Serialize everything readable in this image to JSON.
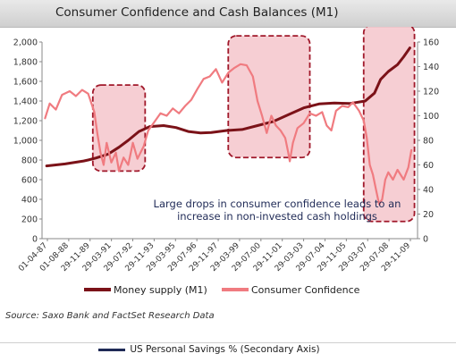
{
  "title": "Consumer Confidence and Cash Balances (M1)",
  "source": "Source: Saxo Bank and FactSet Research Data",
  "bottom_legend": "US Personal Savings % (Secondary Axis)",
  "annotation": {
    "line1": "Large drops in consumer confidence leads to an",
    "line2": "increase in non-invested cash holdings"
  },
  "colors": {
    "money_supply": "#7b1218",
    "consumer_confidence": "#f07b80",
    "highlight_fill": "#f4c5cb",
    "highlight_border": "#a0182a",
    "annotation_text": "#1f2a56",
    "savings_line": "#1f2a56"
  },
  "chart_data": {
    "type": "line",
    "title": "Consumer Confidence and Cash Balances (M1)",
    "x_tick_labels": [
      "01-04-87",
      "01-08-88",
      "29-11-89",
      "29-03-91",
      "29-07-92",
      "29-11-93",
      "29-03-95",
      "29-07-96",
      "29-11-97",
      "29-03-99",
      "29-07-00",
      "29-11-01",
      "29-03-03",
      "29-07-04",
      "29-11-05",
      "29-03-07",
      "29-07-08",
      "29-11-09"
    ],
    "y_left": {
      "range": [
        0,
        2000
      ],
      "ticks": [
        "0",
        "200",
        "400",
        "600",
        "800",
        "1,000",
        "1,200",
        "1,400",
        "1,600",
        "1,800",
        "2,000"
      ]
    },
    "y_right": {
      "range": [
        0,
        160
      ],
      "ticks": [
        "0",
        "20",
        "40",
        "60",
        "80",
        "100",
        "120",
        "140",
        "160"
      ]
    },
    "series": [
      {
        "name": "Money supply (M1)",
        "axis": "left",
        "points": [
          [
            1987.3,
            740
          ],
          [
            1988.5,
            760
          ],
          [
            1989.7,
            790
          ],
          [
            1990.0,
            800
          ],
          [
            1990.5,
            820
          ],
          [
            1991.3,
            860
          ],
          [
            1992.0,
            930
          ],
          [
            1992.6,
            1000
          ],
          [
            1993.3,
            1090
          ],
          [
            1994.0,
            1140
          ],
          [
            1994.9,
            1150
          ],
          [
            1995.7,
            1130
          ],
          [
            1996.5,
            1090
          ],
          [
            1997.3,
            1075
          ],
          [
            1998.0,
            1080
          ],
          [
            1999.0,
            1100
          ],
          [
            2000.0,
            1110
          ],
          [
            2001.0,
            1150
          ],
          [
            2002.0,
            1190
          ],
          [
            2003.0,
            1260
          ],
          [
            2004.0,
            1330
          ],
          [
            2005.0,
            1370
          ],
          [
            2006.0,
            1380
          ],
          [
            2007.0,
            1375
          ],
          [
            2008.0,
            1400
          ],
          [
            2008.6,
            1480
          ],
          [
            2009.0,
            1620
          ],
          [
            2009.5,
            1700
          ],
          [
            2010.1,
            1770
          ],
          [
            2010.5,
            1850
          ],
          [
            2010.9,
            1940
          ]
        ]
      },
      {
        "name": "Consumer Confidence",
        "axis": "right",
        "points": [
          [
            1987.2,
            98
          ],
          [
            1987.5,
            110
          ],
          [
            1987.9,
            105
          ],
          [
            1988.3,
            117
          ],
          [
            1988.8,
            120
          ],
          [
            1989.2,
            116
          ],
          [
            1989.6,
            121
          ],
          [
            1990.0,
            118
          ],
          [
            1990.4,
            103
          ],
          [
            1990.6,
            85
          ],
          [
            1990.8,
            70
          ],
          [
            1991.0,
            60
          ],
          [
            1991.2,
            78
          ],
          [
            1991.5,
            62
          ],
          [
            1991.8,
            70
          ],
          [
            1992.0,
            55
          ],
          [
            1992.3,
            66
          ],
          [
            1992.6,
            60
          ],
          [
            1992.9,
            78
          ],
          [
            1993.2,
            65
          ],
          [
            1993.6,
            75
          ],
          [
            1993.9,
            88
          ],
          [
            1994.3,
            95
          ],
          [
            1994.7,
            102
          ],
          [
            1995.1,
            100
          ],
          [
            1995.5,
            106
          ],
          [
            1995.9,
            102
          ],
          [
            1996.3,
            108
          ],
          [
            1996.7,
            113
          ],
          [
            1997.1,
            122
          ],
          [
            1997.5,
            130
          ],
          [
            1997.9,
            132
          ],
          [
            1998.3,
            138
          ],
          [
            1998.7,
            127
          ],
          [
            1999.1,
            135
          ],
          [
            1999.5,
            139
          ],
          [
            1999.9,
            142
          ],
          [
            2000.3,
            141
          ],
          [
            2000.7,
            132
          ],
          [
            2001.0,
            112
          ],
          [
            2001.3,
            100
          ],
          [
            2001.6,
            86
          ],
          [
            2001.9,
            100
          ],
          [
            2002.2,
            92
          ],
          [
            2002.5,
            88
          ],
          [
            2002.8,
            82
          ],
          [
            2003.0,
            70
          ],
          [
            2003.1,
            63
          ],
          [
            2003.3,
            78
          ],
          [
            2003.6,
            90
          ],
          [
            2004.0,
            94
          ],
          [
            2004.4,
            102
          ],
          [
            2004.8,
            100
          ],
          [
            2005.2,
            103
          ],
          [
            2005.5,
            92
          ],
          [
            2005.8,
            88
          ],
          [
            2006.1,
            104
          ],
          [
            2006.5,
            108
          ],
          [
            2006.9,
            107
          ],
          [
            2007.2,
            111
          ],
          [
            2007.6,
            104
          ],
          [
            2007.9,
            96
          ],
          [
            2008.1,
            82
          ],
          [
            2008.3,
            60
          ],
          [
            2008.5,
            52
          ],
          [
            2008.7,
            40
          ],
          [
            2008.9,
            28
          ],
          [
            2009.1,
            32
          ],
          [
            2009.3,
            48
          ],
          [
            2009.5,
            54
          ],
          [
            2009.8,
            48
          ],
          [
            2010.1,
            56
          ],
          [
            2010.5,
            48
          ],
          [
            2010.8,
            58
          ],
          [
            2011.0,
            72
          ]
        ]
      }
    ],
    "highlights": [
      {
        "x": [
          1990.3,
          1993.7
        ],
        "y_right": [
          55,
          125
        ]
      },
      {
        "x": [
          1999.1,
          2004.4
        ],
        "y_right": [
          66,
          165
        ]
      },
      {
        "x": [
          2007.9,
          2011.2
        ],
        "y_right": [
          14,
          174
        ]
      }
    ],
    "legend": "bottom",
    "grid": false
  }
}
